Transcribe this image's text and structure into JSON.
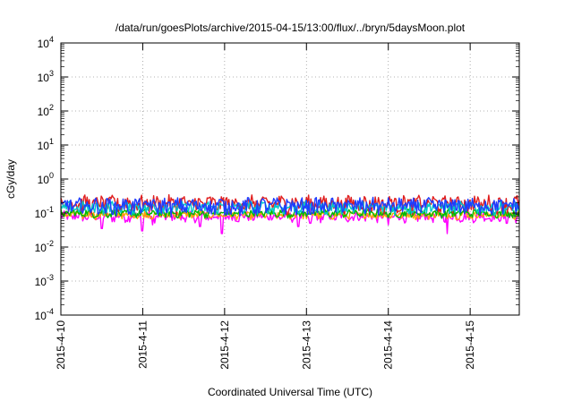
{
  "chart_data": {
    "type": "line",
    "title": "/data/run/goesPlots/archive/2015-04-15/13:00/flux/../bryn/5daysMoon.plot",
    "xlabel": "Coordinated Universal Time (UTC)",
    "ylabel": "cGy/day",
    "yscale": "log",
    "ylim": [
      0.0001,
      10000
    ],
    "xlim_days": [
      0,
      5.6
    ],
    "x_tick_labels": [
      "2015-4-10",
      "2015-4-11",
      "2015-4-12",
      "2015-4-13",
      "2015-4-14",
      "2015-4-15"
    ],
    "y_ticks": [
      {
        "base": "10",
        "exp": "4"
      },
      {
        "base": "10",
        "exp": "3"
      },
      {
        "base": "10",
        "exp": "2"
      },
      {
        "base": "10",
        "exp": "1"
      },
      {
        "base": "10",
        "exp": "0"
      },
      {
        "base": "10",
        "exp": "-1"
      },
      {
        "base": "10",
        "exp": "-2"
      },
      {
        "base": "10",
        "exp": "-3"
      },
      {
        "base": "10",
        "exp": "-4"
      }
    ],
    "grid": true,
    "legend": "none",
    "series": [
      {
        "color": "#ff00ff",
        "base": 0.08,
        "amp": 0.1,
        "dips": [
          [
            0.5,
            0.035
          ],
          [
            0.99,
            0.03
          ],
          [
            1.12,
            0.045
          ],
          [
            1.7,
            0.04
          ],
          [
            1.97,
            0.025
          ],
          [
            2.9,
            0.04
          ],
          [
            3.05,
            0.05
          ],
          [
            4.0,
            0.045
          ],
          [
            4.72,
            0.025
          ],
          [
            5.45,
            0.05
          ]
        ]
      },
      {
        "color": "#ffa500",
        "base": 0.09,
        "amp": 0.08,
        "dips": []
      },
      {
        "color": "#00bb00",
        "base": 0.1,
        "amp": 0.08,
        "dips": []
      },
      {
        "color": "#e01e1e",
        "base": 0.2,
        "amp": 0.16,
        "dips": []
      },
      {
        "color": "#00c8c8",
        "base": 0.15,
        "amp": 0.12,
        "dips": []
      },
      {
        "color": "#1e3cff",
        "base": 0.17,
        "amp": 0.16,
        "dips": []
      }
    ]
  }
}
